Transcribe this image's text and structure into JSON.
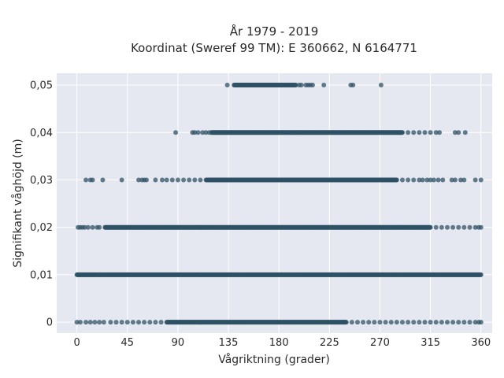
{
  "chart_data": {
    "type": "scatter",
    "title": [
      "År 1979 - 2019",
      "Koordinat (Sweref 99 TM): E 360662, N 6164771"
    ],
    "xlabel": "Vågriktning (grader)",
    "ylabel": "Signifikant våghöjd (m)",
    "xlim": [
      -18,
      370
    ],
    "ylim": [
      -0.0023,
      0.0525
    ],
    "x_ticks": [
      0,
      45,
      90,
      135,
      180,
      225,
      270,
      315,
      360
    ],
    "x_tick_labels": [
      "0",
      "45",
      "90",
      "135",
      "180",
      "225",
      "270",
      "315",
      "360"
    ],
    "y_ticks": [
      0,
      0.01,
      0.02,
      0.03,
      0.04,
      0.05
    ],
    "y_tick_labels": [
      "0",
      "0,01",
      "0,02",
      "0,03",
      "0,04",
      "0,05"
    ],
    "grid": true,
    "marker_color": "#2f5266",
    "plot_background": "#e5e8f1",
    "levels": [
      {
        "y": 0.05,
        "dense_range": [
          140,
          195
        ],
        "points": [
          134,
          148,
          149,
          150,
          152,
          198,
          200,
          204,
          206,
          208,
          210,
          220,
          244,
          246,
          271
        ]
      },
      {
        "y": 0.04,
        "dense_range": [
          120,
          290
        ],
        "points": [
          88,
          103,
          105,
          108,
          112,
          115,
          118,
          295,
          300,
          305,
          310,
          315,
          320,
          323,
          337,
          340,
          346
        ]
      },
      {
        "y": 0.03,
        "dense_range": [
          115,
          285
        ],
        "points": [
          8,
          12,
          14,
          23,
          40,
          55,
          58,
          60,
          62,
          70,
          76,
          80,
          85,
          90,
          95,
          100,
          105,
          110,
          290,
          295,
          300,
          305,
          308,
          312,
          315,
          318,
          322,
          326,
          334,
          337,
          342,
          345,
          355,
          360
        ]
      },
      {
        "y": 0.02,
        "dense_range": [
          25,
          315
        ],
        "points": [
          1,
          3,
          5,
          7,
          10,
          14,
          18,
          20,
          320,
          325,
          330,
          335,
          340,
          345,
          350,
          355,
          358,
          360
        ]
      },
      {
        "y": 0.01,
        "dense_range": [
          0,
          360
        ],
        "points": []
      },
      {
        "y": 0.0,
        "dense_range": [
          80,
          240
        ],
        "points": [
          0,
          3,
          8,
          12,
          16,
          20,
          24,
          30,
          35,
          40,
          45,
          50,
          55,
          60,
          65,
          70,
          75,
          245,
          250,
          255,
          260,
          265,
          270,
          275,
          280,
          285,
          290,
          295,
          300,
          305,
          310,
          315,
          320,
          325,
          330,
          335,
          340,
          345,
          350,
          355,
          358,
          360
        ]
      }
    ]
  }
}
